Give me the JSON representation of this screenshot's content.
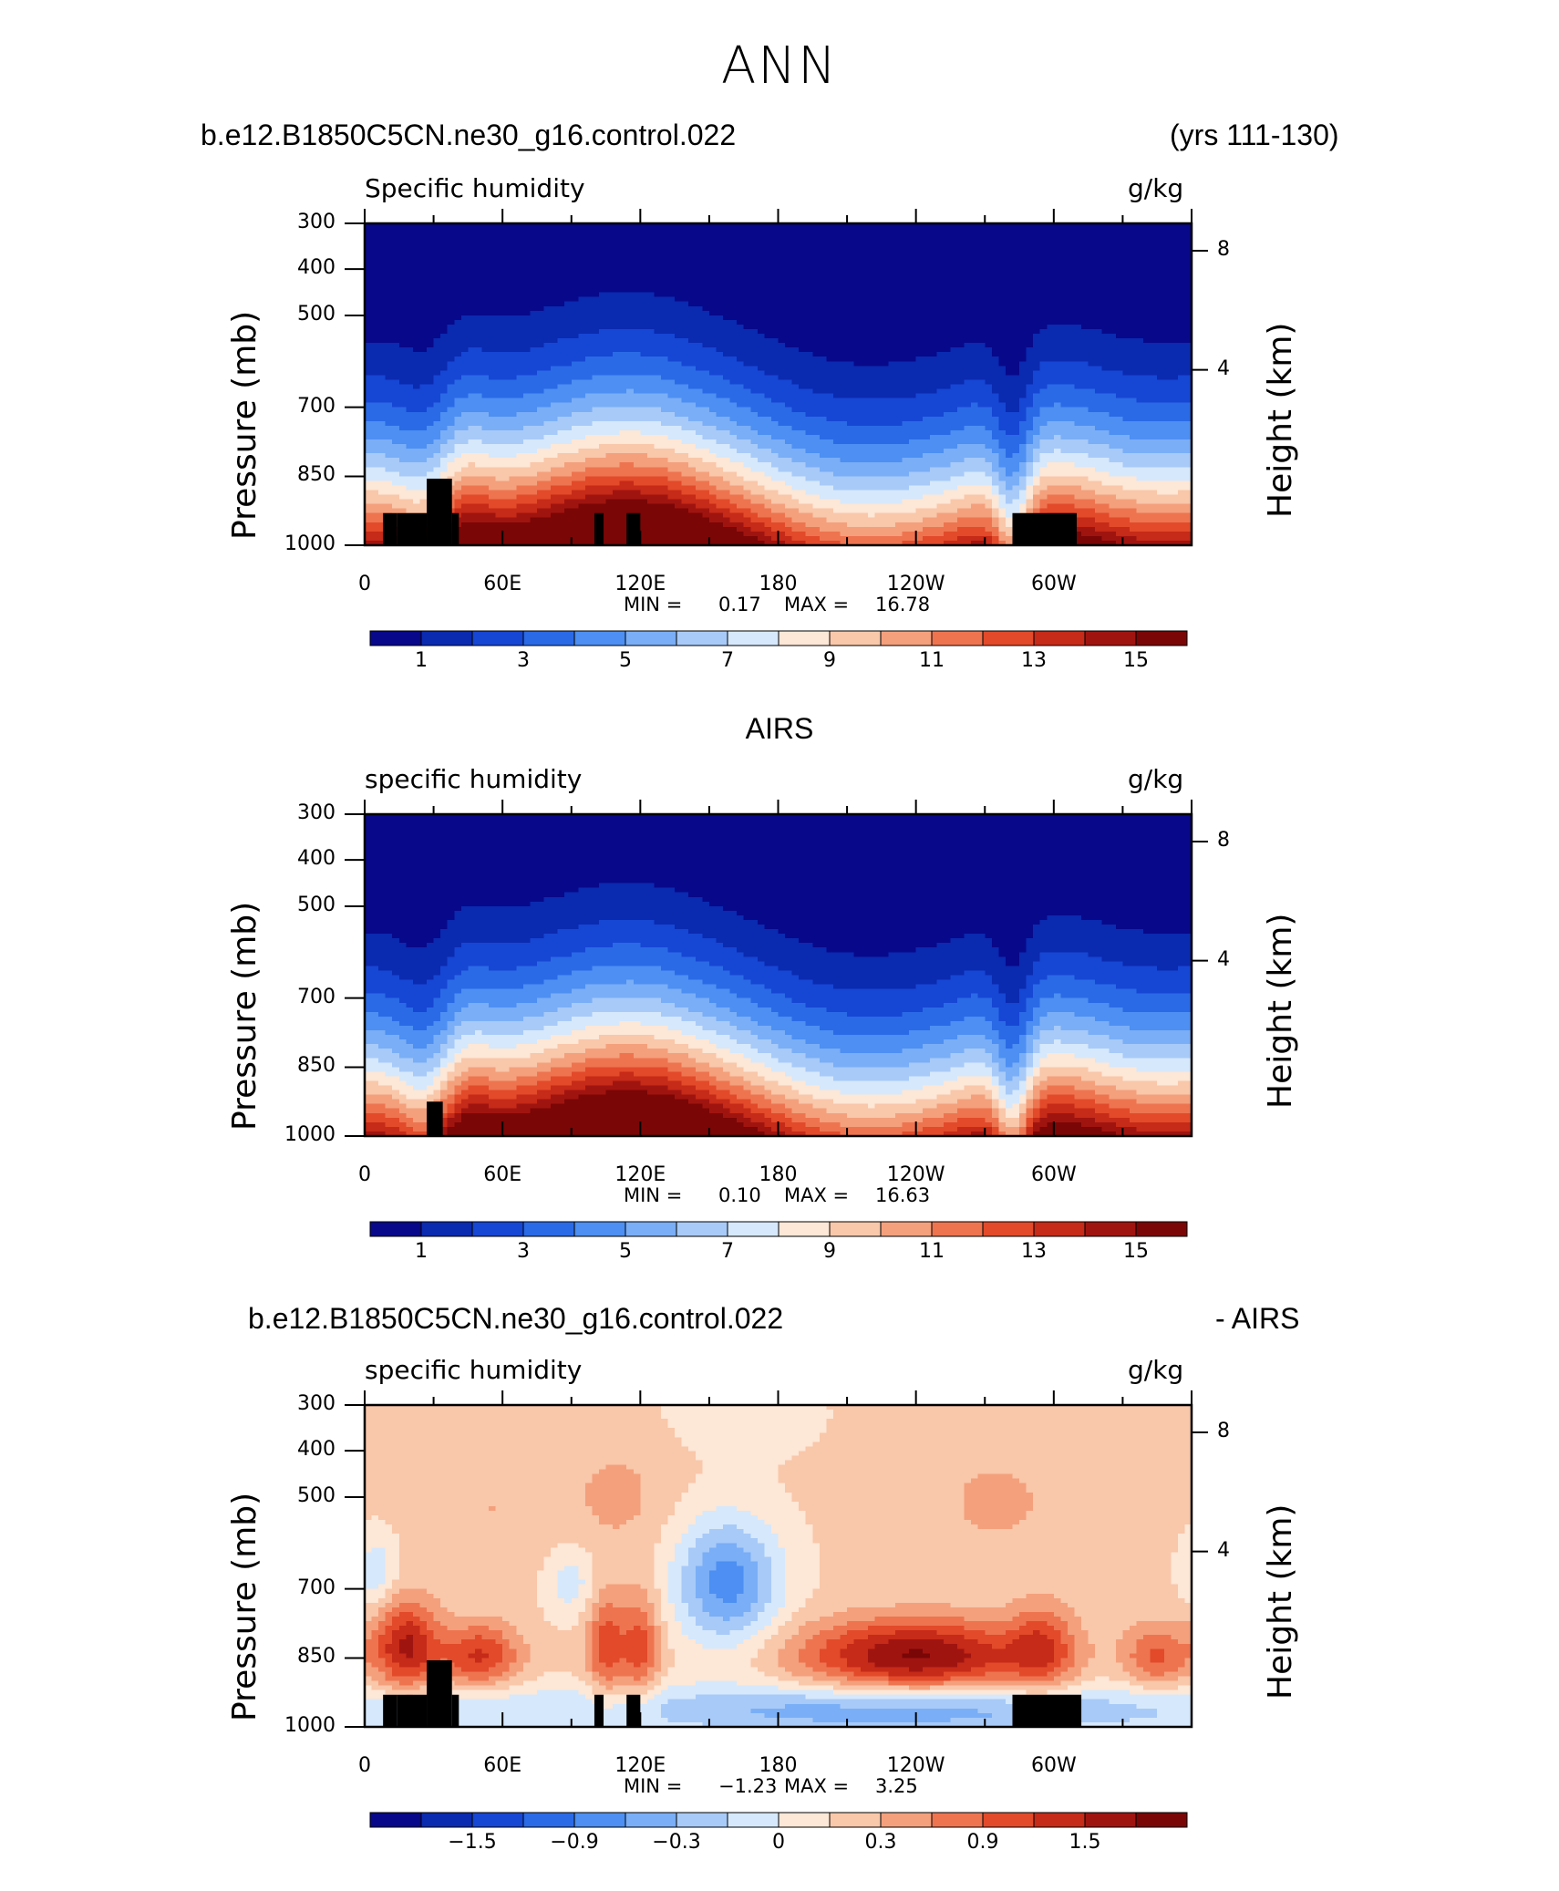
{
  "page": {
    "season_title": "ANN"
  },
  "panel_headers": {
    "top_left": "b.e12.B1850C5CN.ne30_g16.control.022",
    "top_right": "(yrs 111-130)",
    "middle_center": "AIRS",
    "bottom_left": "b.e12.B1850C5CN.ne30_g16.control.022",
    "bottom_right": "- AIRS"
  },
  "colors": {
    "abs_scale": [
      "#08088a",
      "#0a2ab0",
      "#1646d4",
      "#2a6ae6",
      "#4d8ff2",
      "#7aaef6",
      "#a8caf8",
      "#d6e8fb",
      "#fde7d6",
      "#f9c7aa",
      "#f4a07c",
      "#ee7450",
      "#e24a2a",
      "#c62a18",
      "#a01410",
      "#7a0606"
    ],
    "diff_scale": [
      "#08088a",
      "#0a2ab0",
      "#1646d4",
      "#2a6ae6",
      "#4d8ff2",
      "#7aaef6",
      "#a8caf8",
      "#d6e8fb",
      "#fde7d6",
      "#f9c7aa",
      "#f4a07c",
      "#ee7450",
      "#e24a2a",
      "#c62a18",
      "#a01410",
      "#7a0606"
    ],
    "land_mask": "#000000"
  },
  "chart_data": [
    {
      "type": "heatmap",
      "title_left": "Specific humidity",
      "title_right": "g/kg",
      "ylabel": "Pressure (mb)",
      "ylabel_right": "Height (km)",
      "x_ticks": [
        "0",
        "60E",
        "120E",
        "180",
        "120W",
        "60W"
      ],
      "x_range_deg": [
        0,
        360
      ],
      "y_ticks": [
        "300",
        "400",
        "500",
        "700",
        "850",
        "1000"
      ],
      "y_ticks_right": [
        "8",
        "4"
      ],
      "y_range_mb": [
        300,
        1000
      ],
      "min_label": "MIN =",
      "min_value": "0.17",
      "max_label": "MAX =",
      "max_value": "16.78",
      "colorbar_levels": [
        0,
        1,
        2,
        3,
        4,
        5,
        6,
        7,
        8,
        9,
        10,
        11,
        12,
        13,
        14,
        15,
        16
      ],
      "colorbar_labels": [
        "1",
        "3",
        "5",
        "7",
        "9",
        "11",
        "13",
        "15"
      ],
      "profile_note": "near-surface values ~15-16 g/kg over tropics, decreasing to <1 g/kg near 300 mb; minima over 30E and 80W topography"
    },
    {
      "type": "heatmap",
      "title_left": "specific humidity",
      "title_right": "g/kg",
      "ylabel": "Pressure (mb)",
      "ylabel_right": "Height (km)",
      "x_ticks": [
        "0",
        "60E",
        "120E",
        "180",
        "120W",
        "60W"
      ],
      "x_range_deg": [
        0,
        360
      ],
      "y_ticks": [
        "300",
        "400",
        "500",
        "700",
        "850",
        "1000"
      ],
      "y_ticks_right": [
        "8",
        "4"
      ],
      "y_range_mb": [
        300,
        1000
      ],
      "min_label": "MIN =",
      "min_value": "0.10",
      "max_label": "MAX =",
      "max_value": "16.63",
      "colorbar_levels": [
        0,
        1,
        2,
        3,
        4,
        5,
        6,
        7,
        8,
        9,
        10,
        11,
        12,
        13,
        14,
        15,
        16
      ],
      "colorbar_labels": [
        "1",
        "3",
        "5",
        "7",
        "9",
        "11",
        "13",
        "15"
      ]
    },
    {
      "type": "heatmap",
      "title_left": "specific humidity",
      "title_right": "g/kg",
      "ylabel": "Pressure (mb)",
      "ylabel_right": "Height (km)",
      "x_ticks": [
        "0",
        "60E",
        "120E",
        "180",
        "120W",
        "60W"
      ],
      "x_range_deg": [
        0,
        360
      ],
      "y_ticks": [
        "300",
        "400",
        "500",
        "700",
        "850",
        "1000"
      ],
      "y_ticks_right": [
        "8",
        "4"
      ],
      "y_range_mb": [
        300,
        1000
      ],
      "min_label": "MIN =",
      "min_value": "−1.23",
      "max_label": "MAX =",
      "max_value": "3.25",
      "colorbar_levels": [
        -2.1,
        -1.8,
        -1.5,
        -1.2,
        -0.9,
        -0.6,
        -0.3,
        0,
        0.3,
        0.6,
        0.9,
        1.2,
        1.5,
        1.8,
        2.1
      ],
      "colorbar_labels": [
        "−1.5",
        "−0.9",
        "−0.3",
        "0",
        "0.3",
        "0.9",
        "1.5"
      ]
    }
  ]
}
